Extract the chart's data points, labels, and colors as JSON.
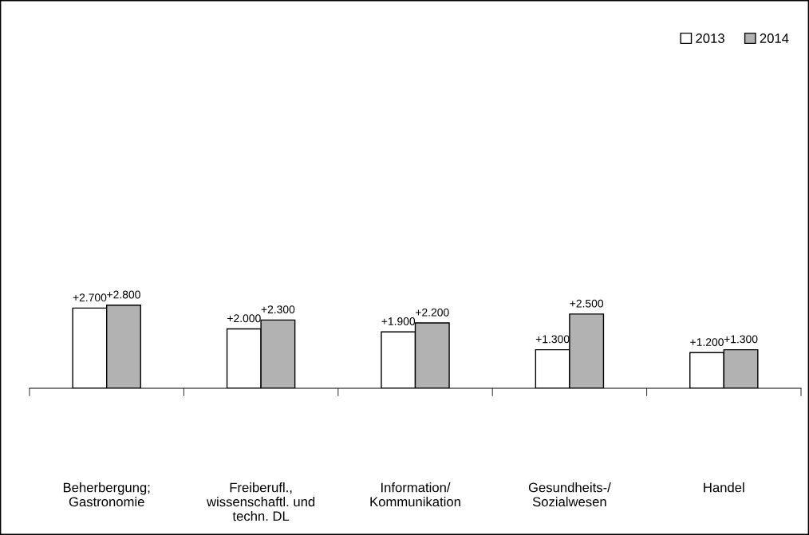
{
  "chart_data": {
    "type": "bar",
    "categories": [
      "Beherbergung;\nGastronomie",
      "Freiberufl.,\nwissenschaftl. und\ntechn. DL",
      "Information/\nKommunikation",
      "Gesundheits-/\nSozialwesen",
      "Handel"
    ],
    "series": [
      {
        "name": "2013",
        "color": "#ffffff",
        "values": [
          2700,
          2000,
          1900,
          1300,
          1200
        ],
        "value_labels": [
          "+2.700",
          "+2.000",
          "+1.900",
          "+1.300",
          "+1.200"
        ]
      },
      {
        "name": "2014",
        "color": "#b2b2b2",
        "values": [
          2800,
          2300,
          2200,
          2500,
          1300
        ],
        "value_labels": [
          "+2.800",
          "+2.300",
          "+2.200",
          "+2.500",
          "+1.300"
        ]
      }
    ],
    "ylim": [
      0,
      12000
    ],
    "tick_labels": "x",
    "legend": "top right"
  }
}
